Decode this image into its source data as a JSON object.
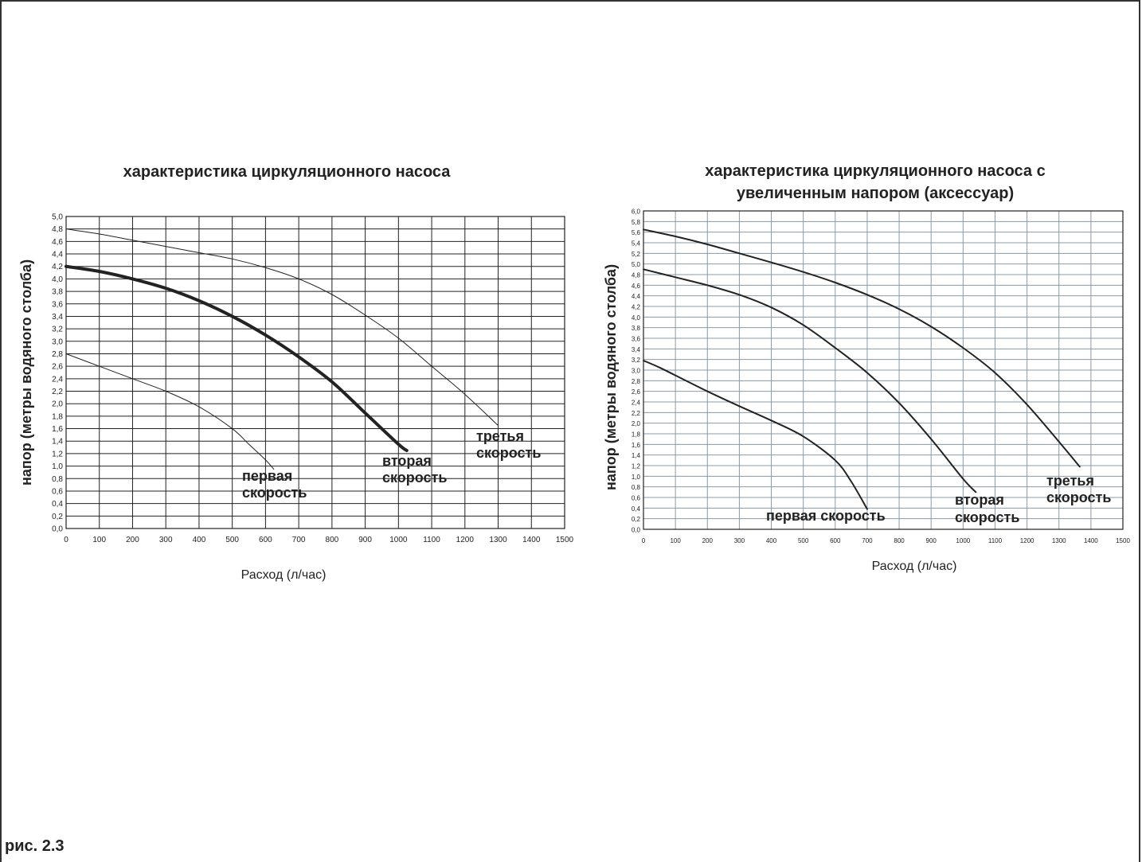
{
  "figure_caption": "рис. 2.3",
  "chart_data": [
    {
      "type": "line",
      "title": "характеристика циркуляционного насоса",
      "xlabel": "Расход (л/час)",
      "ylabel": "напор (метры водяного столба)",
      "xlim": [
        0,
        1500
      ],
      "ylim": [
        0,
        5.0
      ],
      "xticks": [
        0,
        100,
        200,
        300,
        400,
        500,
        600,
        700,
        800,
        900,
        1000,
        1100,
        1200,
        1300,
        1400,
        1500
      ],
      "yticks": [
        "0,0",
        "0,2",
        "0,4",
        "0,6",
        "0,8",
        "1,0",
        "1,2",
        "1,4",
        "1,6",
        "1,8",
        "2,0",
        "2,2",
        "2,4",
        "2,6",
        "2,8",
        "3,0",
        "3,2",
        "3,4",
        "3,6",
        "3,8",
        "4,0",
        "4,2",
        "4,4",
        "4,6",
        "4,8",
        "5,0"
      ],
      "grid": true,
      "grid_color": "#222222",
      "series": [
        {
          "name": "первая скорость",
          "label_lines": [
            "первая",
            "скорость"
          ],
          "stroke_width": 1,
          "color": "#222222",
          "x": [
            0,
            100,
            200,
            300,
            400,
            500,
            550,
            600,
            625
          ],
          "y": [
            2.8,
            2.6,
            2.4,
            2.2,
            1.95,
            1.6,
            1.35,
            1.1,
            0.95
          ]
        },
        {
          "name": "вторая скорость",
          "label_lines": [
            "вторая",
            "скорость"
          ],
          "stroke_width": 4,
          "color": "#222222",
          "x": [
            0,
            100,
            200,
            300,
            400,
            500,
            600,
            700,
            800,
            900,
            1000,
            1025
          ],
          "y": [
            4.2,
            4.12,
            4.0,
            3.85,
            3.65,
            3.4,
            3.1,
            2.75,
            2.35,
            1.85,
            1.35,
            1.25
          ]
        },
        {
          "name": "третья скорость",
          "label_lines": [
            "третья",
            "скорость"
          ],
          "stroke_width": 1,
          "color": "#222222",
          "x": [
            0,
            100,
            200,
            300,
            400,
            500,
            600,
            700,
            800,
            900,
            1000,
            1100,
            1200,
            1300
          ],
          "y": [
            4.8,
            4.72,
            4.62,
            4.52,
            4.42,
            4.32,
            4.18,
            4.0,
            3.75,
            3.42,
            3.05,
            2.6,
            2.15,
            1.65
          ]
        }
      ]
    },
    {
      "type": "line",
      "title": "характеристика циркуляционного насоса с увеличенным напором (аксессуар)",
      "title_lines": [
        "характеристика циркуляционного насоса с",
        "увеличенным напором (аксессуар)"
      ],
      "xlabel": "Расход (л/час)",
      "ylabel": "напор (метры водяного столба)",
      "xlim": [
        0,
        1500
      ],
      "ylim": [
        0,
        6.0
      ],
      "xticks": [
        0,
        100,
        200,
        300,
        400,
        500,
        600,
        700,
        800,
        900,
        1000,
        1100,
        1200,
        1300,
        1400,
        1500
      ],
      "yticks": [
        "0,0",
        "0,2",
        "0,4",
        "0,6",
        "0,8",
        "1,0",
        "1,2",
        "1,4",
        "1,6",
        "1,8",
        "2,0",
        "2,2",
        "2,4",
        "2,6",
        "2,8",
        "3,0",
        "3,2",
        "3,4",
        "3,6",
        "3,8",
        "4,0",
        "4,2",
        "4,4",
        "4,6",
        "4,8",
        "5,0",
        "5,2",
        "5,4",
        "5,6",
        "5,8",
        "6,0"
      ],
      "grid": true,
      "grid_color": "#8a9aa8",
      "series": [
        {
          "name": "первая скорость",
          "label_lines": [
            "первая скорость"
          ],
          "stroke_width": 2,
          "color": "#222222",
          "x": [
            0,
            50,
            100,
            200,
            300,
            400,
            500,
            600,
            650,
            700
          ],
          "y": [
            3.18,
            3.05,
            2.9,
            2.6,
            2.32,
            2.05,
            1.75,
            1.3,
            0.9,
            0.38
          ]
        },
        {
          "name": "вторая скорость",
          "label_lines": [
            "вторая",
            "скорость"
          ],
          "stroke_width": 2,
          "color": "#222222",
          "x": [
            0,
            100,
            200,
            300,
            400,
            500,
            600,
            700,
            800,
            900,
            1000,
            1040
          ],
          "y": [
            4.9,
            4.75,
            4.6,
            4.42,
            4.18,
            3.85,
            3.42,
            2.95,
            2.38,
            1.7,
            0.95,
            0.7
          ]
        },
        {
          "name": "третья скорость",
          "label_lines": [
            "третья",
            "скорость"
          ],
          "stroke_width": 2,
          "color": "#222222",
          "x": [
            0,
            100,
            200,
            300,
            400,
            500,
            600,
            700,
            800,
            900,
            1000,
            1100,
            1200,
            1300,
            1365
          ],
          "y": [
            5.65,
            5.52,
            5.37,
            5.2,
            5.03,
            4.85,
            4.65,
            4.42,
            4.15,
            3.82,
            3.42,
            2.95,
            2.35,
            1.65,
            1.18
          ]
        }
      ]
    }
  ]
}
